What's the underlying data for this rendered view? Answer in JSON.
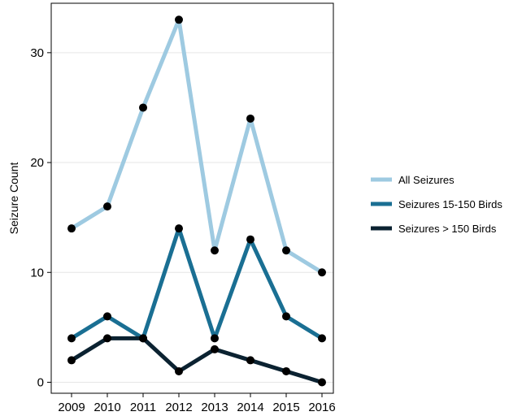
{
  "chart_data": {
    "type": "line",
    "x": [
      2009,
      2010,
      2011,
      2012,
      2013,
      2014,
      2015,
      2016
    ],
    "x_tick_labels": [
      "2009",
      "2010",
      "2011",
      "2012",
      "2013",
      "2014",
      "2015",
      "2016"
    ],
    "y_ticks": [
      0,
      10,
      20,
      30
    ],
    "y_tick_labels": [
      "0",
      "10",
      "20",
      "30"
    ],
    "ylim": [
      -1,
      34.5
    ],
    "xlabel": "",
    "ylabel": "Seizure Count",
    "grid": "horizontal",
    "legend_position": "right",
    "marker_color": "#000000",
    "series": [
      {
        "name": "All Seizures",
        "color": "#9ecae1",
        "values": [
          14,
          16,
          25,
          33,
          12,
          24,
          12,
          10
        ]
      },
      {
        "name": "Seizures 15-150 Birds",
        "color": "#1a6f93",
        "values": [
          4,
          6,
          4,
          14,
          4,
          13,
          6,
          4
        ]
      },
      {
        "name": "Seizures > 150 Birds",
        "color": "#0b2231",
        "values": [
          2,
          4,
          4,
          1,
          3,
          2,
          1,
          0
        ]
      }
    ]
  }
}
